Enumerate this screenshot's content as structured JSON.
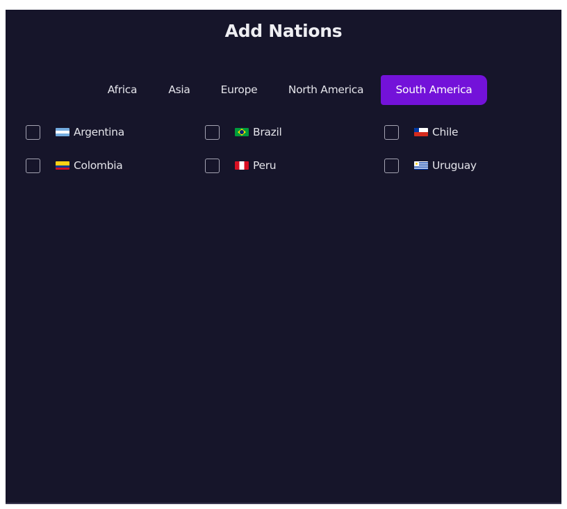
{
  "title": "Add Nations",
  "tabs": [
    {
      "label": "Africa",
      "active": false
    },
    {
      "label": "Asia",
      "active": false
    },
    {
      "label": "Europe",
      "active": false
    },
    {
      "label": "North America",
      "active": false
    },
    {
      "label": "South America",
      "active": true
    }
  ],
  "accent_color": "#7312d9",
  "nations": [
    {
      "name": "Argentina",
      "flag": "argentina-flag-icon",
      "checked": false
    },
    {
      "name": "Brazil",
      "flag": "brazil-flag-icon",
      "checked": false
    },
    {
      "name": "Chile",
      "flag": "chile-flag-icon",
      "checked": false
    },
    {
      "name": "Colombia",
      "flag": "colombia-flag-icon",
      "checked": false
    },
    {
      "name": "Peru",
      "flag": "peru-flag-icon",
      "checked": false
    },
    {
      "name": "Uruguay",
      "flag": "uruguay-flag-icon",
      "checked": false
    }
  ]
}
